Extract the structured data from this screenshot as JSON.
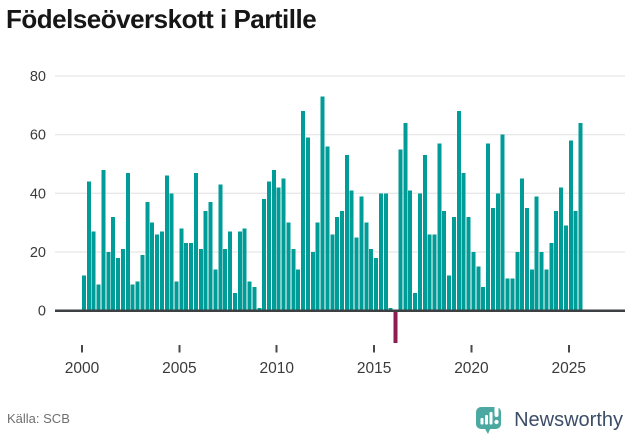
{
  "header": {
    "title": "Födelseöverskott i Partille"
  },
  "footer": {
    "source": "Källa: SCB",
    "brand": "Newsworthy",
    "brand_logo_color": "#4ca9a2",
    "brand_text_color": "#3c4d68"
  },
  "chart_data": {
    "type": "bar",
    "title": "Födelseöverskott i Partille",
    "frequency": "quarterly",
    "period_start": "2000 Q1",
    "period_end": "2025 Q3",
    "values": [
      12,
      44,
      27,
      9,
      48,
      20,
      32,
      18,
      21,
      47,
      9,
      10,
      19,
      37,
      30,
      26,
      27,
      46,
      40,
      10,
      28,
      23,
      23,
      47,
      21,
      34,
      37,
      14,
      43,
      21,
      27,
      6,
      27,
      28,
      10,
      8,
      1,
      38,
      44,
      48,
      42,
      45,
      30,
      21,
      14,
      68,
      59,
      20,
      30,
      73,
      56,
      26,
      32,
      34,
      53,
      41,
      25,
      39,
      30,
      21,
      18,
      40,
      40,
      1,
      -11,
      55,
      64,
      41,
      6,
      40,
      53,
      26,
      26,
      57,
      34,
      12,
      32,
      68,
      47,
      32,
      20,
      15,
      8,
      57,
      35,
      40,
      60,
      11,
      11,
      20,
      45,
      35,
      14,
      39,
      20,
      14,
      23,
      34,
      42,
      29,
      58,
      34,
      64
    ],
    "x_ticks": [
      2000,
      2005,
      2010,
      2015,
      2020,
      2025
    ],
    "y_ticks": [
      0,
      20,
      40,
      60,
      80
    ],
    "ylim": [
      -14,
      84
    ],
    "grid": true,
    "legend": false,
    "bar_color": "#009c98",
    "negative_bar_color": "#8e1d51",
    "axis_color": "#3d4043",
    "grid_color": "#e8e8e8",
    "tick_label_color": "#3a3a3a"
  }
}
